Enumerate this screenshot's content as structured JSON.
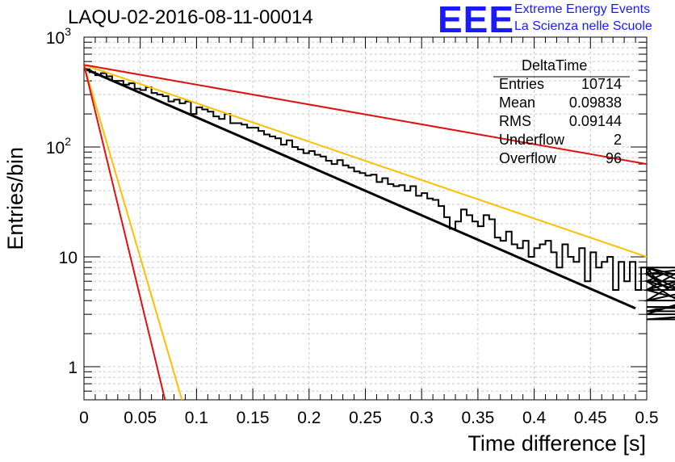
{
  "header": {
    "title": "LAQU-02-2016-08-11-00014",
    "logo_text": "EEE",
    "logo_line1": "Extreme Energy Events",
    "logo_line2": "La Scienza nelle Scuole"
  },
  "stats": {
    "name": "DeltaTime",
    "rows": [
      {
        "key": "Entries",
        "value": "10714"
      },
      {
        "key": "Mean",
        "value": "0.09838"
      },
      {
        "key": "RMS",
        "value": "0.09144"
      },
      {
        "key": "Underflow",
        "value": "2"
      },
      {
        "key": "Overflow",
        "value": "96"
      }
    ]
  },
  "chart_data": {
    "type": "line",
    "xlabel": "Time difference [s]",
    "ylabel": "Entries/bin",
    "xlim": [
      0,
      0.5
    ],
    "ylim": [
      0.5,
      1000
    ],
    "yscale": "log",
    "grid": true,
    "x_ticks": [
      "0",
      "0.05",
      "0.1",
      "0.15",
      "0.2",
      "0.25",
      "0.3",
      "0.35",
      "0.4",
      "0.45",
      "0.5"
    ],
    "y_ticks": [
      "1",
      "10",
      "10^2",
      "10^3"
    ],
    "histogram": {
      "bin_width": 0.005,
      "counts": [
        510,
        480,
        450,
        470,
        440,
        400,
        400,
        370,
        380,
        340,
        330,
        350,
        310,
        300,
        290,
        260,
        270,
        250,
        260,
        200,
        230,
        220,
        210,
        190,
        180,
        200,
        165,
        165,
        160,
        150,
        150,
        140,
        130,
        125,
        120,
        105,
        115,
        100,
        95,
        88,
        92,
        85,
        82,
        75,
        70,
        76,
        68,
        65,
        60,
        58,
        55,
        56,
        48,
        52,
        46,
        44,
        45,
        40,
        44,
        36,
        38,
        34,
        33,
        29,
        23,
        18,
        21,
        27,
        24,
        21,
        19,
        24,
        22,
        15,
        14,
        17,
        13,
        12,
        14,
        10,
        12,
        13,
        14,
        11,
        8,
        13,
        10,
        9,
        12,
        6,
        11,
        8,
        9,
        10,
        5,
        9,
        6,
        9,
        5,
        8,
        7,
        8,
        6,
        7,
        5,
        7,
        5,
        4,
        7,
        8,
        6,
        2.7,
        3,
        5,
        8,
        4,
        6,
        3.5,
        3.2,
        5,
        5
      ],
      "color": "#000000"
    },
    "series": [
      {
        "color": "#000000",
        "x": [
          0,
          0.49
        ],
        "y": [
          520,
          3.4
        ]
      },
      {
        "color": "#ffbf00",
        "x": [
          0,
          0.5
        ],
        "y": [
          560,
          10
        ]
      },
      {
        "color": "#e01010",
        "x": [
          0,
          0.5
        ],
        "y": [
          560,
          70
        ]
      },
      {
        "color": "#ffbf00",
        "x": [
          0,
          0.087
        ],
        "y": [
          560,
          0.5
        ]
      },
      {
        "color": "#e01010",
        "x": [
          0,
          0.072
        ],
        "y": [
          560,
          0.5
        ]
      }
    ]
  }
}
